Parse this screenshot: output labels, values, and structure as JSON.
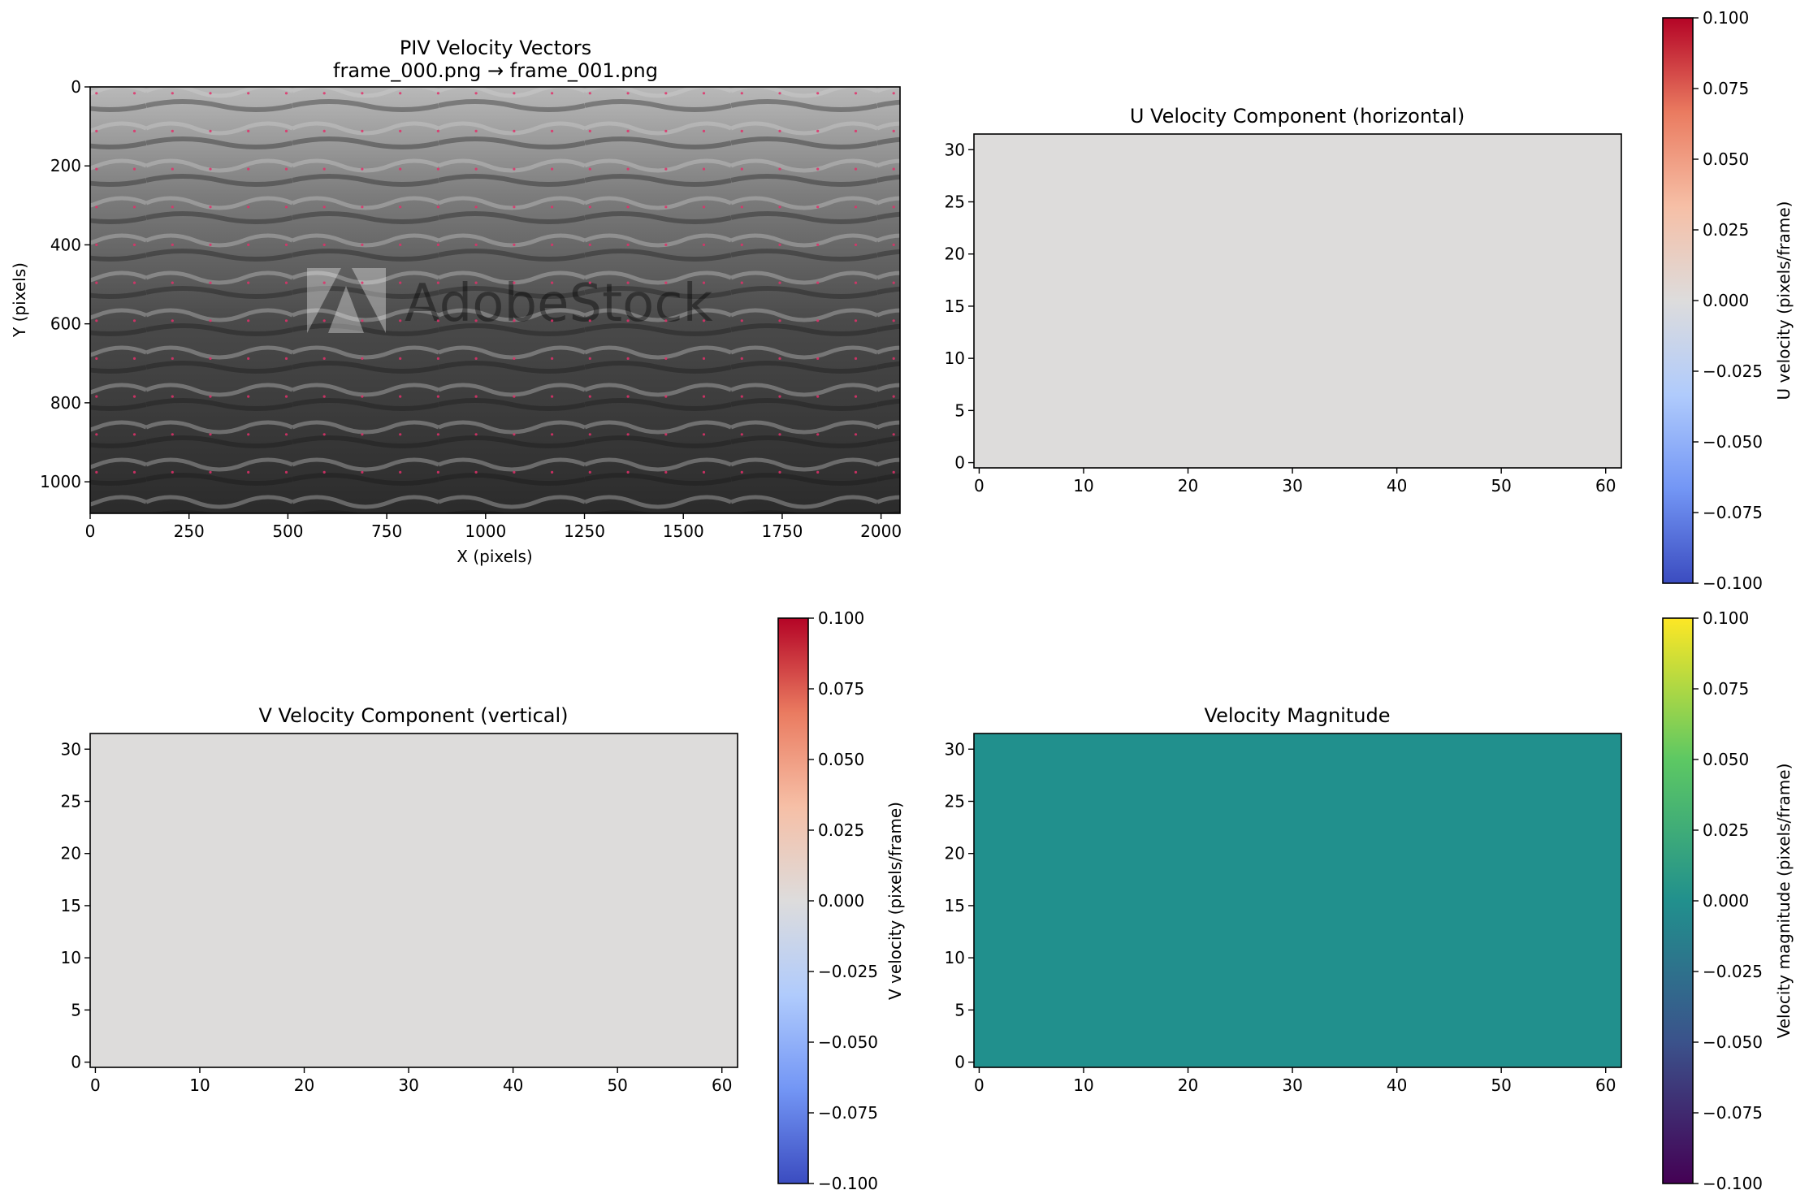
{
  "colors": {
    "u_v_field": "#dddcdb",
    "magnitude_field": "#21908d",
    "vector_dot": "#e0306a",
    "coolwarm_stops": [
      "#3b4cc0",
      "#7396f5",
      "#b0cbfc",
      "#dddcdc",
      "#f6bfa6",
      "#ea7b60",
      "#b40426"
    ],
    "viridis_stops": [
      "#440154",
      "#3b528b",
      "#21908d",
      "#5dc863",
      "#fde725"
    ]
  },
  "chart_data": [
    {
      "type": "scatter",
      "id": "piv",
      "title_lines": [
        "PIV Velocity Vectors",
        "frame_000.png → frame_001.png"
      ],
      "xlabel": "X (pixels)",
      "ylabel": "Y (pixels)",
      "xlim": [
        0,
        2048
      ],
      "ylim": [
        1080,
        0
      ],
      "xticks": [
        0,
        250,
        500,
        750,
        1000,
        1250,
        1500,
        1750,
        2000
      ],
      "yticks": [
        0,
        200,
        400,
        600,
        800,
        1000
      ],
      "background": "grayscale water surface photograph",
      "watermark": "AdobeStock",
      "vector_grid": {
        "x_start": 16,
        "x_step": 96,
        "x_count": 22,
        "y_start": 16,
        "y_step": 96,
        "y_count": 11,
        "u": 0,
        "v": 0
      }
    },
    {
      "type": "heatmap",
      "id": "u",
      "title": "U Velocity Component (horizontal)",
      "xlim": [
        -0.5,
        61.5
      ],
      "ylim": [
        -0.5,
        31.5
      ],
      "xticks": [
        0,
        10,
        20,
        30,
        40,
        50,
        60
      ],
      "yticks": [
        0,
        5,
        10,
        15,
        20,
        25,
        30
      ],
      "value": 0,
      "colorbar": {
        "cmap": "coolwarm",
        "label": "U velocity (pixels/frame)",
        "range": [
          -0.1,
          0.1
        ],
        "ticks": [
          "0.100",
          "0.075",
          "0.050",
          "0.025",
          "0.000",
          "−0.025",
          "−0.050",
          "−0.075",
          "−0.100"
        ]
      }
    },
    {
      "type": "heatmap",
      "id": "v",
      "title": "V Velocity Component (vertical)",
      "xlim": [
        -0.5,
        61.5
      ],
      "ylim": [
        -0.5,
        31.5
      ],
      "xticks": [
        0,
        10,
        20,
        30,
        40,
        50,
        60
      ],
      "yticks": [
        0,
        5,
        10,
        15,
        20,
        25,
        30
      ],
      "value": 0,
      "colorbar": {
        "cmap": "coolwarm",
        "label": "V velocity (pixels/frame)",
        "range": [
          -0.1,
          0.1
        ],
        "ticks": [
          "0.100",
          "0.075",
          "0.050",
          "0.025",
          "0.000",
          "−0.025",
          "−0.050",
          "−0.075",
          "−0.100"
        ]
      }
    },
    {
      "type": "heatmap",
      "id": "mag",
      "title": "Velocity Magnitude",
      "xlim": [
        -0.5,
        61.5
      ],
      "ylim": [
        -0.5,
        31.5
      ],
      "xticks": [
        0,
        10,
        20,
        30,
        40,
        50,
        60
      ],
      "yticks": [
        0,
        5,
        10,
        15,
        20,
        25,
        30
      ],
      "value": 0,
      "colorbar": {
        "cmap": "viridis",
        "label": "Velocity magnitude (pixels/frame)",
        "range": [
          -0.1,
          0.1
        ],
        "ticks": [
          "0.100",
          "0.075",
          "0.050",
          "0.025",
          "0.000",
          "−0.025",
          "−0.050",
          "−0.075",
          "−0.100"
        ]
      }
    }
  ]
}
